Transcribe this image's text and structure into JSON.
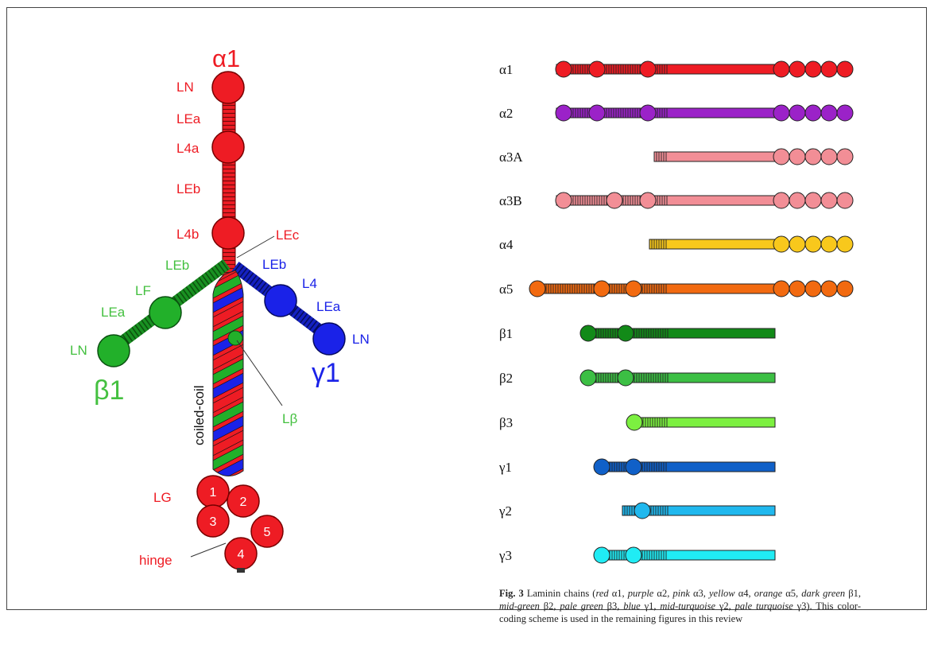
{
  "structure": {
    "alpha_title": "α1",
    "beta_title": "β1",
    "gamma_title": "γ1",
    "alpha_labels": {
      "ln": "LN",
      "lea": "LEa",
      "l4a": "L4a",
      "leb": "LEb",
      "l4b": "L4b",
      "lec": "LEc"
    },
    "beta_labels": {
      "leb": "LEb",
      "lf": "LF",
      "lea": "LEa",
      "ln": "LN"
    },
    "gamma_labels": {
      "leb": "LEb",
      "l4": "L4",
      "lea": "LEa",
      "ln": "LN"
    },
    "coiled_coil": "coiled-coil",
    "lbeta": "Lβ",
    "lg": "LG",
    "hinge": "hinge",
    "lg_numbers": [
      "1",
      "2",
      "3",
      "4",
      "5"
    ]
  },
  "chains": [
    {
      "name": "α1",
      "color": "#ee1c24"
    },
    {
      "name": "α2",
      "color": "#9b22c8"
    },
    {
      "name": "α3A",
      "color": "#f28e96"
    },
    {
      "name": "α3B",
      "color": "#f28e96"
    },
    {
      "name": "α4",
      "color": "#f8c81c"
    },
    {
      "name": "α5",
      "color": "#f26a10"
    },
    {
      "name": "β1",
      "color": "#128a18"
    },
    {
      "name": "β2",
      "color": "#3cbf44"
    },
    {
      "name": "β3",
      "color": "#7cf040"
    },
    {
      "name": "γ1",
      "color": "#1060c8"
    },
    {
      "name": "γ2",
      "color": "#20b8ee"
    },
    {
      "name": "γ3",
      "color": "#20ecf4"
    }
  ],
  "caption": {
    "fig": "Fig. 3",
    "text_a": " Laminin chains (",
    "i1": "red",
    "t1": " α1, ",
    "i2": "purple",
    "t2": " α2, ",
    "i3": "pink",
    "t3": " α3, ",
    "i4": "yellow",
    "t4": " α4, ",
    "i5": "orange",
    "t5": " α5, ",
    "i6": "dark green",
    "t6": " β1, ",
    "i7": "mid-green",
    "t7": " β2, ",
    "i8": "pale green",
    "t8": " β3, ",
    "i9": "blue",
    "t9": " γ1, ",
    "i10": "mid-turquoise",
    "t10": " γ2, ",
    "i11": "pale turquoise",
    "t11": " γ3). This color-coding scheme is used in the remaining figures in this review"
  }
}
